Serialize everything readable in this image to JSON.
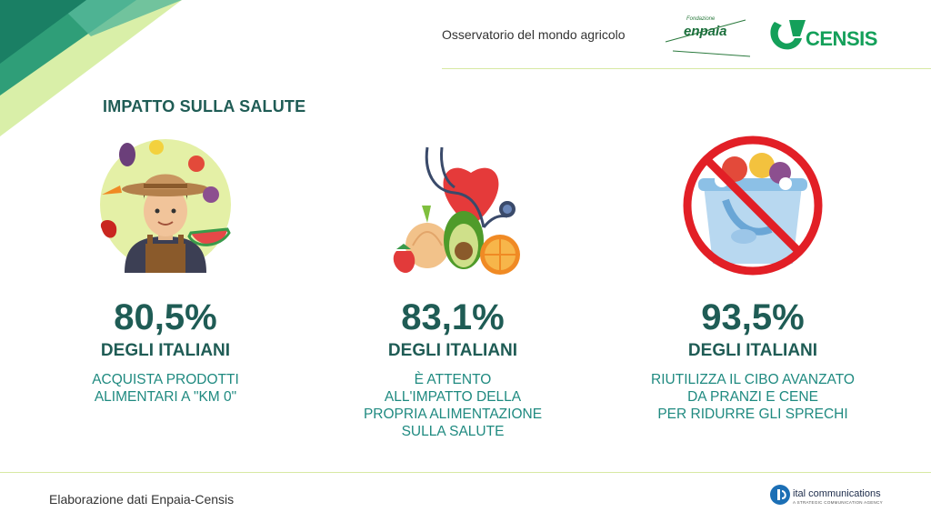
{
  "header": {
    "tagline": "Osservatorio del mondo agricolo",
    "enpaia_small": "Fondazione",
    "enpaia_name": "enpaia",
    "censis_name": "CENSIS"
  },
  "section": {
    "title": "IMPATTO SULLA SALUTE"
  },
  "stats": [
    {
      "percent": "80,5%",
      "subtitle": "DEGLI ITALIANI",
      "description": "ACQUISTA PRODOTTI\nALIMENTARI A \"KM 0\"",
      "icon": "farmer-with-vegetables-icon"
    },
    {
      "percent": "83,1%",
      "subtitle": "DEGLI ITALIANI",
      "description": "È ATTENTO\nALL'IMPATTO DELLA\nPROPRIA ALIMENTAZIONE\nSULLA SALUTE",
      "icon": "heart-stethoscope-vegetables-icon"
    },
    {
      "percent": "93,5%",
      "subtitle": "DEGLI ITALIANI",
      "description": "RIUTILIZZA IL CIBO AVANZATO\nDA PRANZI E CENE\nPER RIDURRE GLI SPRECHI",
      "icon": "no-food-waste-icon"
    }
  ],
  "footer": {
    "source": "Elaborazione dati Enpaia-Censis",
    "agency_name": "ital communications",
    "agency_tagline": "A STRATEGIC COMMUNICATION AGENCY"
  },
  "colors": {
    "primary": "#1f5c55",
    "accent_teal": "#1f8a80",
    "corner_dark": "#1a8a6a",
    "corner_light": "#c9e58a",
    "divider": "#d7e9a3"
  }
}
